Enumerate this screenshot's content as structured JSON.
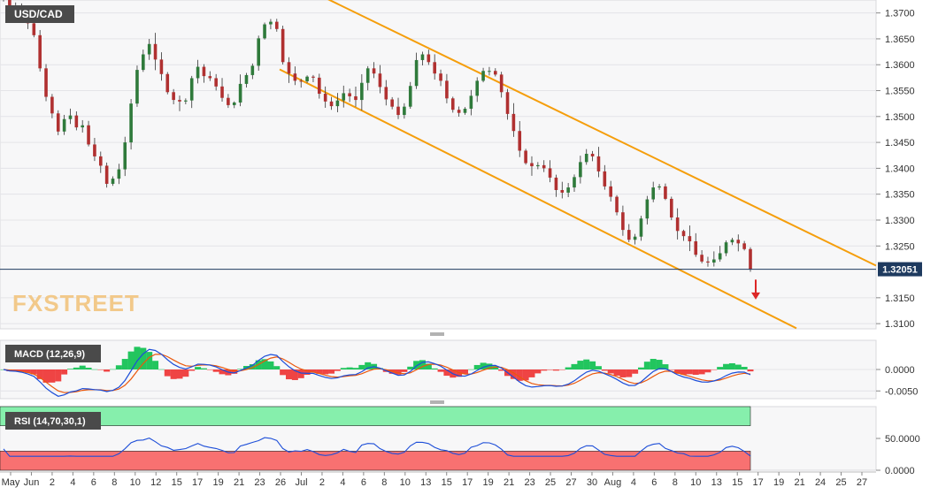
{
  "chart_data": {
    "type": "candlestick",
    "symbol": "USD/CAD",
    "current_price": "1.32051",
    "price_axis": {
      "ylim": [
        1.309,
        1.3725
      ],
      "ticks": [
        "1.3700",
        "1.3650",
        "1.3600",
        "1.3550",
        "1.3500",
        "1.3450",
        "1.3400",
        "1.3350",
        "1.3300",
        "1.3250",
        "1.3150",
        "1.3100"
      ]
    },
    "x_labels": [
      "May",
      "Jun",
      "2",
      "4",
      "6",
      "8",
      "10",
      "12",
      "15",
      "17",
      "19",
      "21",
      "23",
      "26",
      "Jul",
      "2",
      "4",
      "6",
      "8",
      "10",
      "13",
      "15",
      "17",
      "19",
      "21",
      "23",
      "25",
      "27",
      "30",
      "Aug",
      "4",
      "6",
      "8",
      "10",
      "13",
      "15",
      "17",
      "19",
      "21",
      "24",
      "25",
      "27"
    ],
    "series_close": [
      1.3727,
      1.3707,
      1.3712,
      1.37,
      1.368,
      1.3657,
      1.3593,
      1.3538,
      1.3506,
      1.3471,
      1.3495,
      1.3502,
      1.3479,
      1.3483,
      1.3446,
      1.3423,
      1.3405,
      1.337,
      1.338,
      1.3398,
      1.345,
      1.3525,
      1.359,
      1.362,
      1.364,
      1.361,
      1.3582,
      1.3547,
      1.3532,
      1.3529,
      1.3531,
      1.3574,
      1.3596,
      1.3578,
      1.3574,
      1.3558,
      1.3536,
      1.3522,
      1.3527,
      1.3563,
      1.358,
      1.3598,
      1.3651,
      1.3678,
      1.3683,
      1.3669,
      1.3605,
      1.3583,
      1.3569,
      1.3568,
      1.3577,
      1.3575,
      1.3544,
      1.3529,
      1.352,
      1.3531,
      1.3545,
      1.3539,
      1.3532,
      1.3565,
      1.3593,
      1.3583,
      1.3557,
      1.3533,
      1.3519,
      1.3503,
      1.3519,
      1.3559,
      1.3609,
      1.362,
      1.3605,
      1.3583,
      1.3569,
      1.3535,
      1.3513,
      1.3507,
      1.3515,
      1.354,
      1.3569,
      1.3588,
      1.3588,
      1.3581,
      1.3547,
      1.3505,
      1.3472,
      1.3434,
      1.341,
      1.3404,
      1.3406,
      1.34,
      1.3382,
      1.3358,
      1.3353,
      1.3363,
      1.3383,
      1.3412,
      1.3428,
      1.3423,
      1.3394,
      1.3365,
      1.3345,
      1.3315,
      1.3281,
      1.3262,
      1.3268,
      1.3303,
      1.334,
      1.3363,
      1.3365,
      1.3341,
      1.3305,
      1.3279,
      1.3269,
      1.3259,
      1.3233,
      1.322,
      1.3218,
      1.3224,
      1.3236,
      1.3257,
      1.3262,
      1.3255,
      1.3244,
      1.3205
    ],
    "indicators": [
      {
        "name": "MACD (12,26,9)",
        "ticks": [
          "0.0000",
          "-0.0050"
        ],
        "ylim": [
          -0.0068,
          0.0068
        ],
        "histogram_colors": {
          "positive": "#22c55e",
          "negative": "#ef4444"
        },
        "macd_color": "#1d4ed8",
        "signal_color": "#ea580c"
      },
      {
        "name": "RSI (14,70,30,1)",
        "ticks": [
          "50.0000",
          "0.0000"
        ],
        "ylim": [
          0,
          100
        ],
        "overbought_color": "#86efac",
        "oversold_color": "#f87171",
        "line_color": "#1d4ed8"
      }
    ],
    "overlay": {
      "channel_color": "#f59e0b",
      "arrow_color": "#dc2626",
      "price_line_color": "#1e3a5f"
    },
    "watermark": "FXSTREET"
  }
}
